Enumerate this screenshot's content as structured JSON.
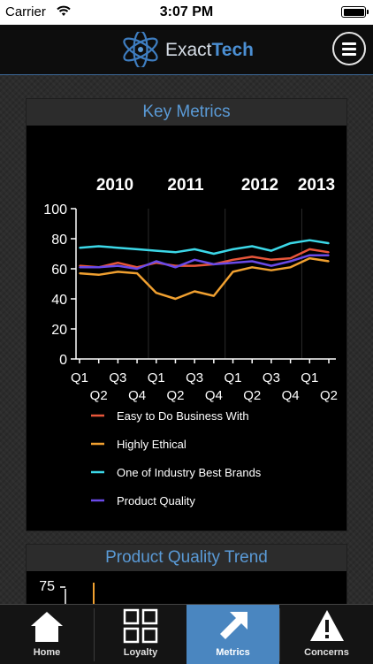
{
  "status_bar": {
    "carrier": "Carrier",
    "time": "3:07 PM"
  },
  "navbar": {
    "logo_light": "Exact",
    "logo_bold": "Tech",
    "menu_icon": "hamburger-menu-icon"
  },
  "key_metrics": {
    "title": "Key Metrics",
    "year_labels": [
      "2010",
      "2011",
      "2012",
      "2013"
    ],
    "legend": [
      {
        "label": "Easy to Do Business With",
        "color": "#e8563a"
      },
      {
        "label": "Highly Ethical",
        "color": "#f0a030"
      },
      {
        "label": "One of Industry Best Brands",
        "color": "#3cd8e8"
      },
      {
        "label": "Product Quality",
        "color": "#6a4ae8"
      }
    ]
  },
  "product_quality_trend": {
    "title": "Product Quality Trend",
    "y_tick_visible": "75"
  },
  "chart_data": [
    {
      "type": "line",
      "title": "Key Metrics",
      "x": [
        "Q1",
        "Q2",
        "Q3",
        "Q4",
        "Q1",
        "Q2",
        "Q3",
        "Q4",
        "Q1",
        "Q2",
        "Q3",
        "Q4",
        "Q1",
        "Q2"
      ],
      "x_groups": [
        "2010",
        "2011",
        "2012",
        "2013"
      ],
      "yticks": [
        0,
        20,
        40,
        60,
        80,
        100
      ],
      "ylim": [
        0,
        100
      ],
      "grid": false,
      "series": [
        {
          "name": "Easy to Do Business With",
          "color": "#e8563a",
          "values": [
            62,
            61,
            64,
            61,
            64,
            62,
            62,
            63,
            66,
            68,
            66,
            67,
            73,
            71
          ]
        },
        {
          "name": "Highly Ethical",
          "color": "#f0a030",
          "values": [
            57,
            56,
            58,
            57,
            44,
            40,
            45,
            42,
            58,
            61,
            59,
            61,
            67,
            65
          ]
        },
        {
          "name": "One of Industry Best Brands",
          "color": "#3cd8e8",
          "values": [
            74,
            75,
            74,
            73,
            72,
            71,
            73,
            70,
            73,
            75,
            72,
            77,
            79,
            77
          ]
        },
        {
          "name": "Product Quality",
          "color": "#6a4ae8",
          "values": [
            61,
            61,
            62,
            60,
            65,
            61,
            66,
            63,
            64,
            65,
            62,
            65,
            69,
            69
          ]
        }
      ]
    }
  ],
  "tabs": [
    {
      "label": "Home",
      "icon": "home-icon"
    },
    {
      "label": "Loyalty",
      "icon": "grid-icon"
    },
    {
      "label": "Metrics",
      "icon": "arrow-icon",
      "active": true
    },
    {
      "label": "Concerns",
      "icon": "warning-icon"
    }
  ]
}
